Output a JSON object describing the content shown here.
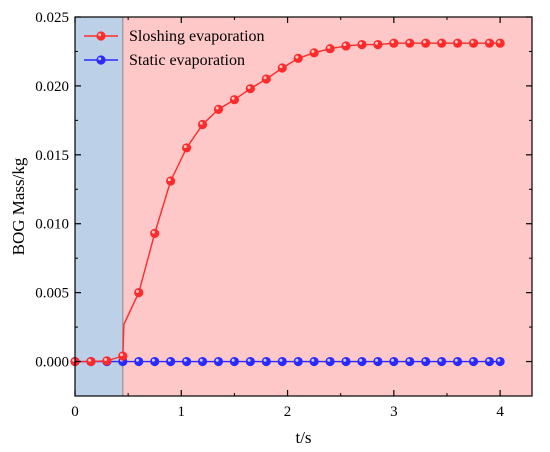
{
  "chart_data": {
    "type": "line",
    "xlabel": "t/s",
    "ylabel": "BOG Mass/kg",
    "xlim": [
      0,
      4.3
    ],
    "ylim": [
      -0.0025,
      0.025
    ],
    "x_ticks": [
      0,
      1,
      2,
      3,
      4
    ],
    "x_tick_labels": [
      "0",
      "1",
      "2",
      "3",
      "4"
    ],
    "y_ticks": [
      0.0,
      0.005,
      0.01,
      0.015,
      0.02,
      0.025
    ],
    "y_tick_labels": [
      "0.000",
      "0.005",
      "0.010",
      "0.015",
      "0.020",
      "0.025"
    ],
    "grid": false,
    "legend_position": "top-left",
    "regions": [
      {
        "x_start": 0,
        "x_end": 0.45,
        "color": "#bcd0e8"
      },
      {
        "x_start": 0.45,
        "x_end": 4.3,
        "color": "#fec8c8"
      }
    ],
    "series": [
      {
        "name": "Sloshing evaporation",
        "color": "#ff2a2a",
        "x": [
          0,
          0.15,
          0.3,
          0.45,
          0.6,
          0.75,
          0.9,
          1.05,
          1.2,
          1.35,
          1.5,
          1.65,
          1.8,
          1.95,
          2.1,
          2.25,
          2.4,
          2.55,
          2.7,
          2.85,
          3.0,
          3.15,
          3.3,
          3.45,
          3.6,
          3.75,
          3.9,
          4.0
        ],
        "y": [
          0.0,
          0.0,
          5e-05,
          0.0004,
          0.005,
          0.0093,
          0.0131,
          0.0155,
          0.0172,
          0.0183,
          0.019,
          0.0198,
          0.0205,
          0.0213,
          0.022,
          0.0224,
          0.0227,
          0.0229,
          0.023,
          0.023,
          0.0231,
          0.0231,
          0.0231,
          0.0231,
          0.0231,
          0.0231,
          0.0231,
          0.0231
        ],
        "line_only_points": [
          [
            0.45,
            0.0004
          ],
          [
            0.46,
            0.0027
          ]
        ]
      },
      {
        "name": "Static evaporation",
        "color": "#2a2aff",
        "x": [
          0,
          0.15,
          0.3,
          0.45,
          0.6,
          0.75,
          0.9,
          1.05,
          1.2,
          1.35,
          1.5,
          1.65,
          1.8,
          1.95,
          2.1,
          2.25,
          2.4,
          2.55,
          2.7,
          2.85,
          3.0,
          3.15,
          3.3,
          3.45,
          3.6,
          3.75,
          3.9,
          4.0
        ],
        "y": [
          0,
          0,
          0,
          0,
          0,
          0,
          0,
          0,
          0,
          0,
          0,
          0,
          0,
          0,
          0,
          0,
          0,
          0,
          0,
          0,
          0,
          0,
          0,
          0,
          0,
          0,
          0,
          0
        ]
      }
    ]
  }
}
